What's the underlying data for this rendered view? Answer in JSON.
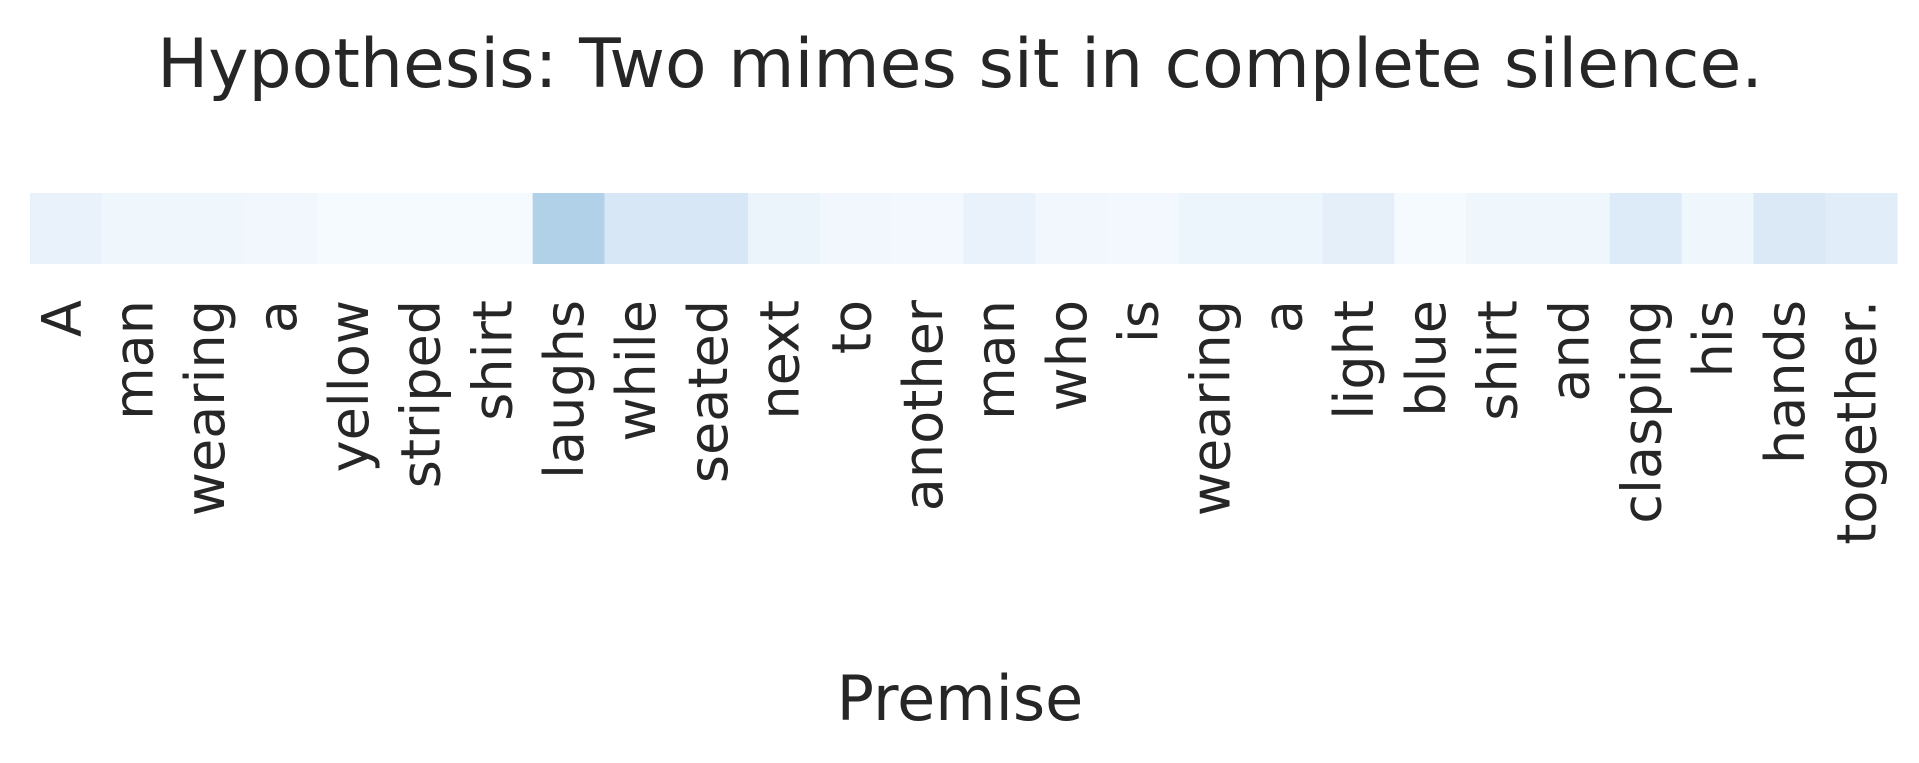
{
  "chart_data": {
    "type": "heatmap",
    "title": "Hypothesis: Two mimes sit in complete silence.",
    "xlabel": "Premise",
    "ylabel": "",
    "colormap": "Blues",
    "color_low": "#f7fbff",
    "color_high": "#08306b",
    "vmin": 0,
    "vmax": 1,
    "rows": 1,
    "categories": [
      "A",
      "man",
      "wearing",
      "a",
      "yellow",
      "striped",
      "shirt",
      "laughs",
      "while",
      "seated",
      "next",
      "to",
      "another",
      "man",
      "who",
      "is",
      "wearing",
      "a",
      "light",
      "blue",
      "shirt",
      "and",
      "clasping",
      "his",
      "hands",
      "together."
    ],
    "values": [
      0.07,
      0.04,
      0.04,
      0.03,
      0.01,
      0.01,
      0.01,
      0.32,
      0.16,
      0.16,
      0.06,
      0.03,
      0.02,
      0.07,
      0.03,
      0.02,
      0.05,
      0.05,
      0.09,
      0.01,
      0.04,
      0.04,
      0.13,
      0.04,
      0.14,
      0.11
    ]
  }
}
